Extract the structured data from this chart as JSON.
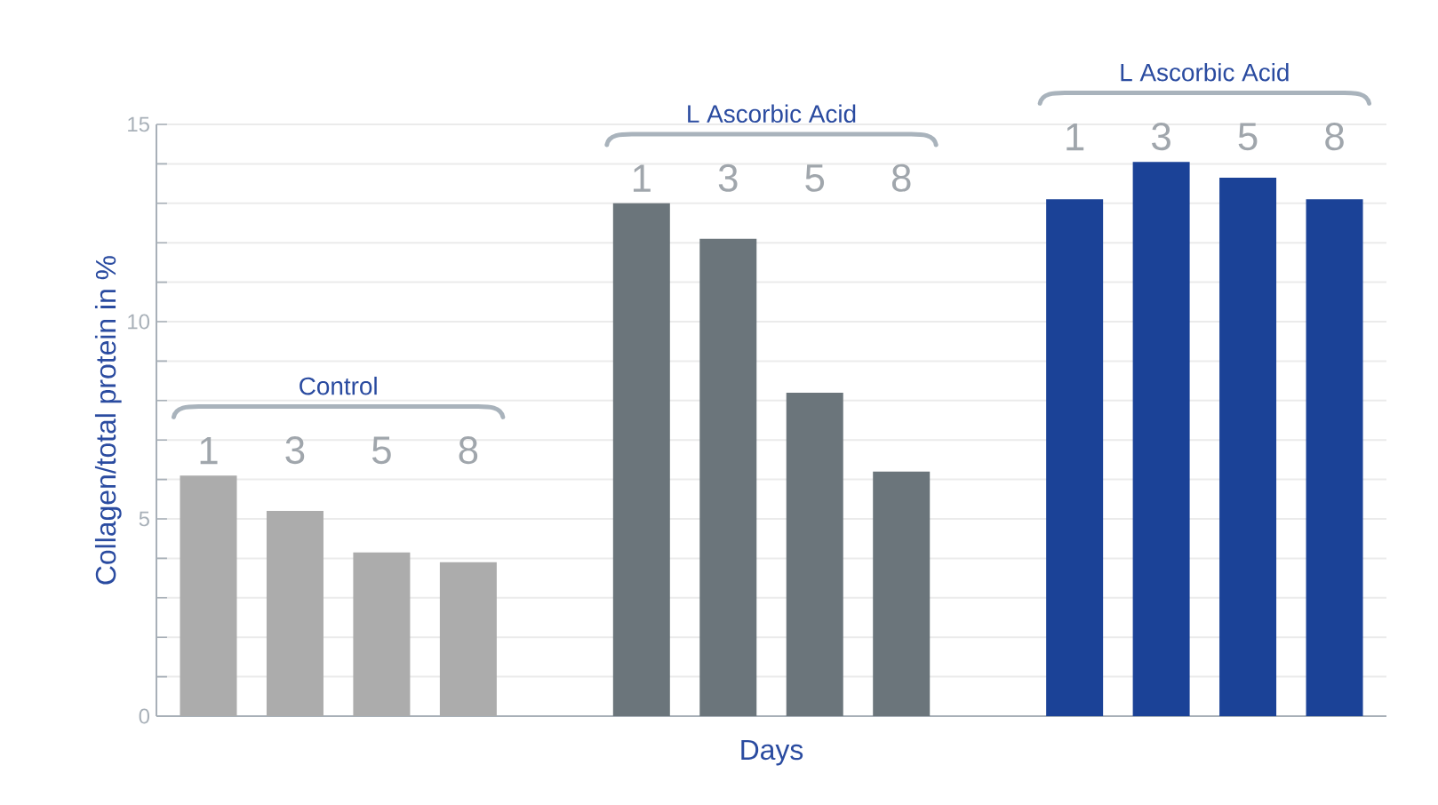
{
  "chart_data": {
    "type": "bar",
    "categories": [
      "1",
      "3",
      "5",
      "8",
      null,
      "1",
      "3",
      "5",
      "8",
      null,
      "1",
      "3",
      "5",
      "8"
    ],
    "values": [
      6.1,
      5.2,
      4.15,
      3.9,
      null,
      13.0,
      12.1,
      8.2,
      6.2,
      null,
      13.1,
      14.05,
      13.65,
      13.1
    ],
    "colors": [
      "#acacac",
      "#acacac",
      "#acacac",
      "#acacac",
      null,
      "#6b757b",
      "#6b757b",
      "#6b757b",
      "#6b757b",
      null,
      "#1b4297",
      "#1b4297",
      "#1b4297",
      "#1b4297"
    ],
    "xlabel": "Days",
    "ylabel": "Collagen/total protein in %",
    "ylim": [
      0,
      15
    ],
    "yticks": [
      0,
      {
        "value": 1,
        "label": null
      },
      {
        "value": 2,
        "label": null
      },
      {
        "value": 3,
        "label": null
      },
      {
        "value": 4,
        "label": null
      },
      5,
      {
        "value": 6,
        "label": null
      },
      {
        "value": 7,
        "label": null
      },
      {
        "value": 8,
        "label": null
      },
      {
        "value": 9,
        "label": null
      },
      10,
      {
        "value": 11,
        "label": null
      },
      {
        "value": 12,
        "label": null
      },
      {
        "value": 13,
        "label": null
      },
      {
        "value": 14,
        "label": null
      },
      15
    ],
    "grid": "y",
    "annotations": [
      "Control",
      "L Ascorbic Acid",
      "L Ascorbic Acid"
    ]
  }
}
